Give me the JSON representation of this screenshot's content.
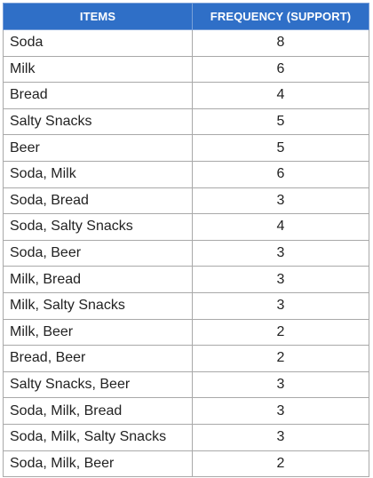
{
  "table": {
    "headers": [
      "ITEMS",
      "FREQUENCY (SUPPORT)"
    ],
    "rows": [
      {
        "items": "Soda",
        "frequency": "8"
      },
      {
        "items": "Milk",
        "frequency": "6"
      },
      {
        "items": "Bread",
        "frequency": "4"
      },
      {
        "items": "Salty Snacks",
        "frequency": "5"
      },
      {
        "items": "Beer",
        "frequency": "5"
      },
      {
        "items": "Soda, Milk",
        "frequency": "6"
      },
      {
        "items": "Soda, Bread",
        "frequency": "3"
      },
      {
        "items": "Soda, Salty Snacks",
        "frequency": "4"
      },
      {
        "items": "Soda, Beer",
        "frequency": "3"
      },
      {
        "items": "Milk, Bread",
        "frequency": "3"
      },
      {
        "items": "Milk, Salty Snacks",
        "frequency": "3"
      },
      {
        "items": "Milk, Beer",
        "frequency": "2"
      },
      {
        "items": "Bread, Beer",
        "frequency": "2"
      },
      {
        "items": "Salty Snacks, Beer",
        "frequency": "3"
      },
      {
        "items": "Soda, Milk, Bread",
        "frequency": "3"
      },
      {
        "items": "Soda, Milk, Salty Snacks",
        "frequency": "3"
      },
      {
        "items": "Soda, Milk, Beer",
        "frequency": "2"
      }
    ]
  },
  "colors": {
    "header_bg": "#2f6fc7",
    "header_text": "#ffffff",
    "grid": "#a9a9a9",
    "text": "#222222"
  }
}
